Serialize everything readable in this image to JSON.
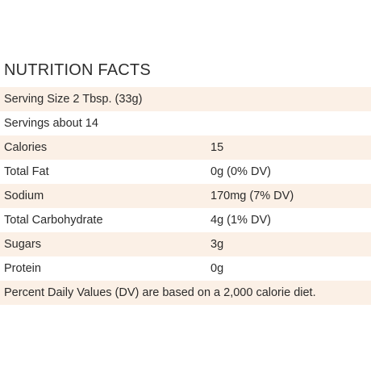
{
  "title": "NUTRITION FACTS",
  "serving_size": "Serving Size 2 Tbsp. (33g)",
  "servings": "Servings about 14",
  "rows": [
    {
      "label": "Calories",
      "value": "15"
    },
    {
      "label": "Total Fat",
      "value": "0g (0% DV)"
    },
    {
      "label": "Sodium",
      "value": "170mg (7% DV)"
    },
    {
      "label": "Total Carbohydrate",
      "value": "4g (1% DV)"
    },
    {
      "label": "Sugars",
      "value": "3g"
    },
    {
      "label": "Protein",
      "value": "0g"
    }
  ],
  "footnote": "Percent Daily Values (DV) are based on a 2,000 calorie diet.",
  "colors": {
    "shade": "#fbf0e6",
    "text": "#2b2b2b"
  }
}
